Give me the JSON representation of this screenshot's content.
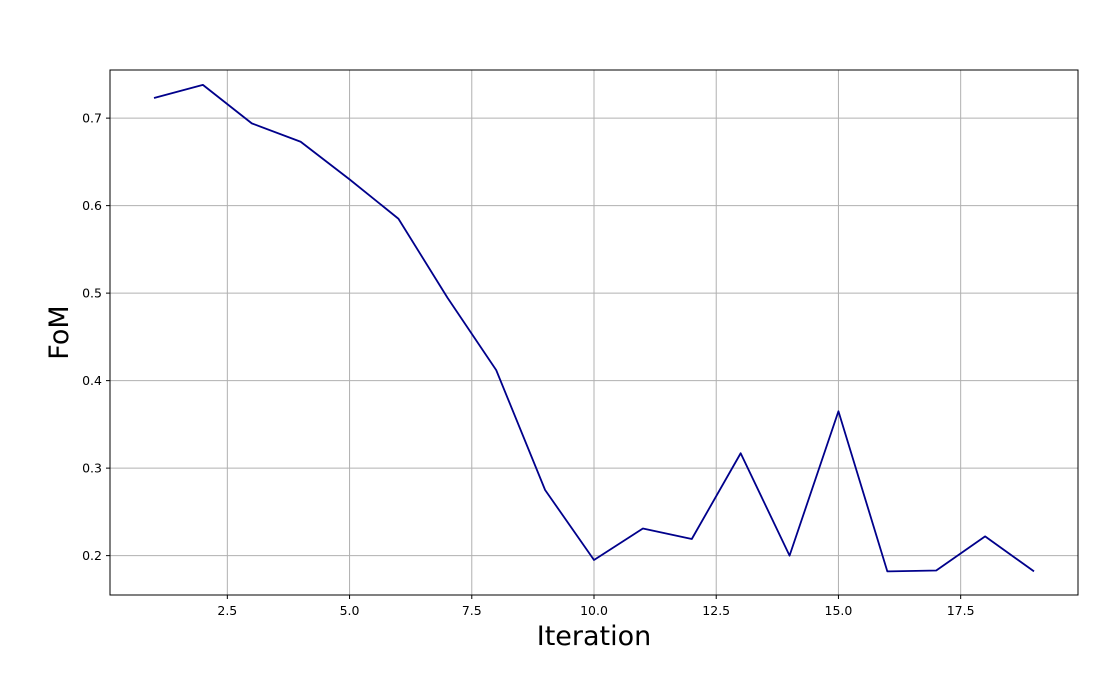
{
  "chart_data": {
    "type": "line",
    "title": "",
    "xlabel": "Iteration",
    "ylabel": "FoM",
    "xlim": [
      0.1,
      19.9
    ],
    "ylim": [
      0.155,
      0.755
    ],
    "xticks": [
      2.5,
      5.0,
      7.5,
      10.0,
      12.5,
      15.0,
      17.5
    ],
    "xtick_labels": [
      "2.5",
      "5.0",
      "7.5",
      "10.0",
      "12.5",
      "15.0",
      "17.5"
    ],
    "yticks": [
      0.2,
      0.3,
      0.4,
      0.5,
      0.6,
      0.7
    ],
    "ytick_labels": [
      "0.2",
      "0.3",
      "0.4",
      "0.5",
      "0.6",
      "0.7"
    ],
    "grid": true,
    "legend": "none",
    "series": [
      {
        "color": "#00008b",
        "x": [
          1,
          2,
          3,
          4,
          5,
          6,
          7,
          8,
          9,
          10,
          11,
          12,
          13,
          14,
          15,
          16,
          17,
          18,
          19
        ],
        "y": [
          0.723,
          0.738,
          0.694,
          0.673,
          0.63,
          0.585,
          0.495,
          0.412,
          0.275,
          0.195,
          0.231,
          0.219,
          0.317,
          0.2,
          0.365,
          0.182,
          0.183,
          0.222,
          0.182
        ]
      }
    ]
  }
}
